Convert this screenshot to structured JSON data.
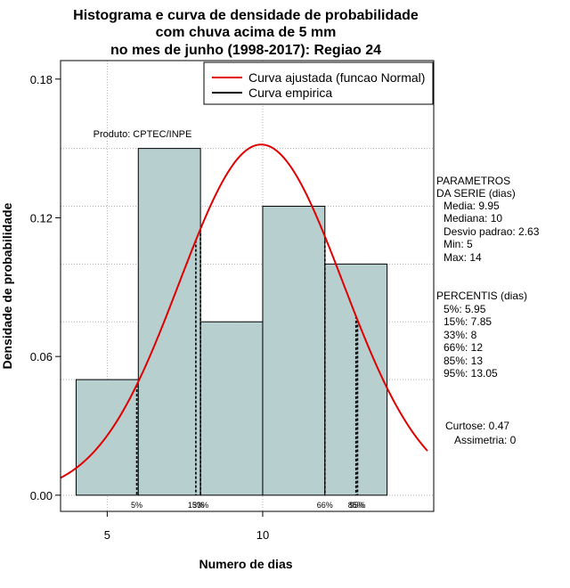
{
  "chart_data": {
    "type": "histogram",
    "title_lines": [
      "Histograma e curva de densidade de probabilidade",
      "com chuva acima de 5 mm",
      "no mes de junho (1998-2017): Regiao 24"
    ],
    "xlabel": "Numero de dias",
    "ylabel": "Densidade de probabilidade",
    "xlim": [
      3.5,
      15.5
    ],
    "ylim": [
      -0.007,
      0.188
    ],
    "x_ticks": [
      5,
      10
    ],
    "x_tick_labels": [
      "5",
      "10"
    ],
    "y_ticks": [
      0.0,
      0.06,
      0.12,
      0.18
    ],
    "y_tick_labels": [
      "0.00",
      "0.06",
      "0.12",
      "0.18"
    ],
    "grid": true,
    "bins": [
      {
        "x0": 4,
        "x1": 6,
        "density": 0.05
      },
      {
        "x0": 6,
        "x1": 8,
        "density": 0.15
      },
      {
        "x0": 8,
        "x1": 10,
        "density": 0.075
      },
      {
        "x0": 10,
        "x1": 12,
        "density": 0.125
      },
      {
        "x0": 12,
        "x1": 14,
        "density": 0.1
      }
    ],
    "normal_fit": {
      "mean": 9.95,
      "sd": 2.63
    },
    "legend": {
      "position": "top-right",
      "entries": [
        {
          "label": "Curva ajustada (funcao Normal)",
          "color": "#e00000"
        },
        {
          "label": "Curva empirica",
          "color": "#000000"
        }
      ]
    },
    "annotation": "Produto: CPTEC/INPE",
    "percentile_marks": [
      {
        "label": "5%",
        "x": 5.95
      },
      {
        "label": "15%",
        "x": 7.85
      },
      {
        "label": "33%",
        "x": 8
      },
      {
        "label": "66%",
        "x": 12
      },
      {
        "label": "85%",
        "x": 13
      },
      {
        "label": "95%",
        "x": 13.05
      }
    ]
  },
  "side_panel": {
    "params_title_1": "PARAMETROS",
    "params_title_2": "DA SERIE (dias)",
    "params": [
      "Media: 9.95",
      "Mediana: 10",
      "Desvio padrao: 2.63",
      "Min: 5",
      "Max: 14"
    ],
    "pct_title": "PERCENTIS (dias)",
    "percentis": [
      "5%: 5.95",
      "15%: 7.85",
      "33%: 8",
      "66%: 12",
      "85%: 13",
      "95%: 13.05"
    ],
    "curtose": "Curtose: 0.47",
    "assimetria": "Assimetria: 0"
  },
  "colors": {
    "bar_fill": "#b7cfcf",
    "bar_stroke": "#000000",
    "fit_line": "#e00000",
    "grid": "#b0b0b0"
  }
}
